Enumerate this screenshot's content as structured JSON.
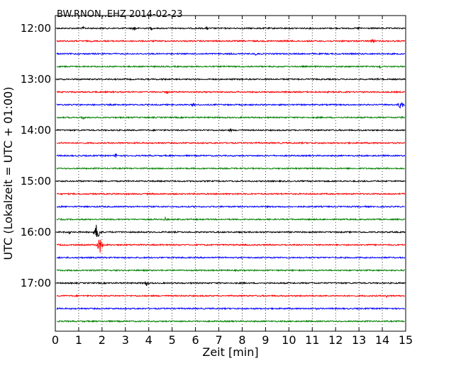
{
  "chart_data": {
    "type": "line",
    "title": "BW.RNON..EHZ 2014-02-23",
    "xlabel": "Zeit  [min]",
    "ylabel": "UTC (Lokalzeit = UTC + 01:00)",
    "xlim": [
      0,
      15
    ],
    "x_ticks": [
      "0",
      "1",
      "2",
      "3",
      "4",
      "5",
      "6",
      "7",
      "8",
      "9",
      "10",
      "11",
      "12",
      "13",
      "14",
      "15"
    ],
    "y_tick_labels": [
      "12:00",
      "13:00",
      "14:00",
      "15:00",
      "16:00",
      "17:00"
    ],
    "grid": "vertical dotted",
    "colors": [
      "#000000",
      "#ff0000",
      "#0000ff",
      "#008000"
    ],
    "rows": [
      {
        "start": "12:00",
        "color": "#000000",
        "events": [
          [
            1.2,
            3
          ],
          [
            3.4,
            5
          ],
          [
            4.1,
            3
          ],
          [
            6.5,
            3
          ],
          [
            13.0,
            3
          ]
        ]
      },
      {
        "start": "12:15",
        "color": "#ff0000",
        "events": [
          [
            9.9,
            3
          ],
          [
            13.6,
            5
          ]
        ]
      },
      {
        "start": "12:30",
        "color": "#0000ff",
        "events": [
          [
            8.6,
            3
          ]
        ]
      },
      {
        "start": "12:45",
        "color": "#008000",
        "events": [
          [
            13.9,
            3
          ]
        ]
      },
      {
        "start": "13:00",
        "color": "#000000",
        "events": [
          [
            4.6,
            2
          ],
          [
            13.8,
            2
          ]
        ]
      },
      {
        "start": "13:15",
        "color": "#ff0000",
        "events": [
          [
            4.8,
            3
          ]
        ]
      },
      {
        "start": "13:30",
        "color": "#0000ff",
        "events": [
          [
            5.9,
            3
          ],
          [
            14.8,
            10
          ]
        ]
      },
      {
        "start": "13:45",
        "color": "#008000",
        "events": [
          [
            1.2,
            4
          ],
          [
            14.8,
            3
          ]
        ]
      },
      {
        "start": "14:00",
        "color": "#000000",
        "events": [
          [
            7.5,
            3
          ]
        ]
      },
      {
        "start": "14:15",
        "color": "#ff0000",
        "events": []
      },
      {
        "start": "14:30",
        "color": "#0000ff",
        "events": [
          [
            2.6,
            4
          ]
        ]
      },
      {
        "start": "14:45",
        "color": "#008000",
        "events": []
      },
      {
        "start": "15:00",
        "color": "#000000",
        "events": []
      },
      {
        "start": "15:15",
        "color": "#ff0000",
        "events": []
      },
      {
        "start": "15:30",
        "color": "#0000ff",
        "events": []
      },
      {
        "start": "15:45",
        "color": "#008000",
        "events": [
          [
            4.7,
            3
          ]
        ]
      },
      {
        "start": "16:00",
        "color": "#000000",
        "events": [
          [
            0.6,
            3
          ],
          [
            1.8,
            20
          ]
        ]
      },
      {
        "start": "16:15",
        "color": "#ff0000",
        "events": [
          [
            1.9,
            15
          ]
        ]
      },
      {
        "start": "16:30",
        "color": "#0000ff",
        "events": []
      },
      {
        "start": "16:45",
        "color": "#008000",
        "events": []
      },
      {
        "start": "17:00",
        "color": "#000000",
        "events": [
          [
            3.9,
            5
          ]
        ]
      },
      {
        "start": "17:15",
        "color": "#ff0000",
        "events": [
          [
            14.2,
            3
          ]
        ]
      },
      {
        "start": "17:30",
        "color": "#0000ff",
        "events": [
          [
            11.2,
            2
          ]
        ]
      },
      {
        "start": "17:45",
        "color": "#008000",
        "events": []
      }
    ]
  }
}
